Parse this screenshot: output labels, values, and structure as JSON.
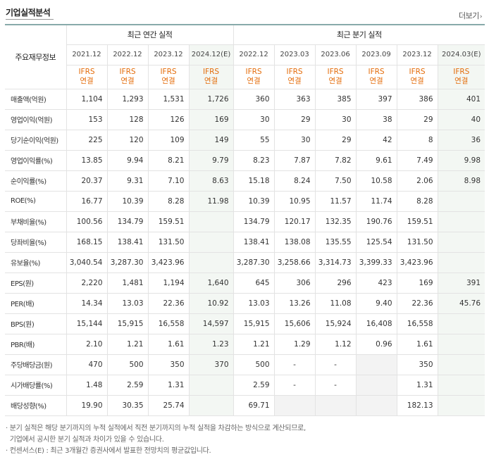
{
  "section_title": "기업실적분석",
  "more_label": "더보기",
  "more_icon": "chevron-right",
  "header": {
    "row_header": "주요재무정보",
    "annual_group": "최근 연간 실적",
    "quarter_group": "최근 분기 실적",
    "annual_periods": [
      "2021.12",
      "2022.12",
      "2023.12",
      "2024.12(E)"
    ],
    "quarter_periods": [
      "2022.12",
      "2023.03",
      "2023.06",
      "2023.09",
      "2023.12",
      "2024.03(E)"
    ],
    "standard_line1": "IFRS",
    "standard_line2": "연결"
  },
  "rows": [
    {
      "label": "매출액(억원)",
      "values": [
        "1,104",
        "1,293",
        "1,531",
        "1,726",
        "360",
        "363",
        "385",
        "397",
        "386",
        "401"
      ]
    },
    {
      "label": "영업이익(억원)",
      "values": [
        "153",
        "128",
        "126",
        "169",
        "30",
        "29",
        "30",
        "38",
        "29",
        "40"
      ]
    },
    {
      "label": "당기순이익(억원)",
      "values": [
        "225",
        "120",
        "109",
        "149",
        "55",
        "30",
        "29",
        "42",
        "8",
        "36"
      ]
    },
    {
      "label": "영업이익률(%)",
      "values": [
        "13.85",
        "9.94",
        "8.21",
        "9.79",
        "8.23",
        "7.87",
        "7.82",
        "9.61",
        "7.49",
        "9.98"
      ]
    },
    {
      "label": "순이익률(%)",
      "values": [
        "20.37",
        "9.31",
        "7.10",
        "8.63",
        "15.18",
        "8.24",
        "7.50",
        "10.58",
        "2.06",
        "8.98"
      ]
    },
    {
      "label": "ROE(%)",
      "values": [
        "16.77",
        "10.39",
        "8.28",
        "11.98",
        "10.39",
        "10.95",
        "11.57",
        "11.74",
        "8.28",
        ""
      ]
    },
    {
      "label": "부채비율(%)",
      "values": [
        "100.56",
        "134.79",
        "159.51",
        "",
        "134.79",
        "120.17",
        "132.35",
        "190.76",
        "159.51",
        ""
      ]
    },
    {
      "label": "당좌비율(%)",
      "values": [
        "168.15",
        "138.41",
        "131.50",
        "",
        "138.41",
        "138.08",
        "135.55",
        "125.54",
        "131.50",
        ""
      ]
    },
    {
      "label": "유보율(%)",
      "values": [
        "3,040.54",
        "3,287.30",
        "3,423.96",
        "",
        "3,287.30",
        "3,258.66",
        "3,314.73",
        "3,399.33",
        "3,423.96",
        ""
      ]
    },
    {
      "label": "EPS(원)",
      "values": [
        "2,220",
        "1,481",
        "1,194",
        "1,640",
        "645",
        "306",
        "296",
        "423",
        "169",
        "391"
      ]
    },
    {
      "label": "PER(배)",
      "values": [
        "14.34",
        "13.03",
        "22.36",
        "10.92",
        "13.03",
        "13.26",
        "11.08",
        "9.40",
        "22.36",
        "45.76"
      ]
    },
    {
      "label": "BPS(원)",
      "values": [
        "15,144",
        "15,915",
        "16,558",
        "14,597",
        "15,915",
        "15,606",
        "15,924",
        "16,408",
        "16,558",
        ""
      ]
    },
    {
      "label": "PBR(배)",
      "values": [
        "2.10",
        "1.21",
        "1.61",
        "1.23",
        "1.21",
        "1.29",
        "1.12",
        "0.96",
        "1.61",
        ""
      ]
    },
    {
      "label": "주당배당금(원)",
      "values": [
        "470",
        "500",
        "350",
        "370",
        "500",
        "-",
        "-",
        "",
        "350",
        ""
      ]
    },
    {
      "label": "시가배당률(%)",
      "values": [
        "1.48",
        "2.59",
        "1.31",
        "",
        "2.59",
        "-",
        "-",
        "",
        "1.31",
        ""
      ]
    },
    {
      "label": "배당성향(%)",
      "values": [
        "19.90",
        "30.35",
        "25.74",
        "",
        "69.71",
        "",
        "",
        "",
        "182.13",
        ""
      ]
    }
  ],
  "notes": [
    "· 분기 실적은 해당 분기까지의 누적 실적에서 직전 분기까지의 누적 실적을 차감하는 방식으로 계산되므로,",
    "  기업에서 공시한 분기 실적과 차이가 있을 수 있습니다.",
    "· 컨센서스(E) : 최근 3개월간 증권사에서 발표한 전망치의 평균값입니다."
  ],
  "colors": {
    "ifrs_text": "#e46c0a",
    "estimate_bg": "#f3f7f3",
    "blank_cell_bg": "#f3f3f3"
  }
}
